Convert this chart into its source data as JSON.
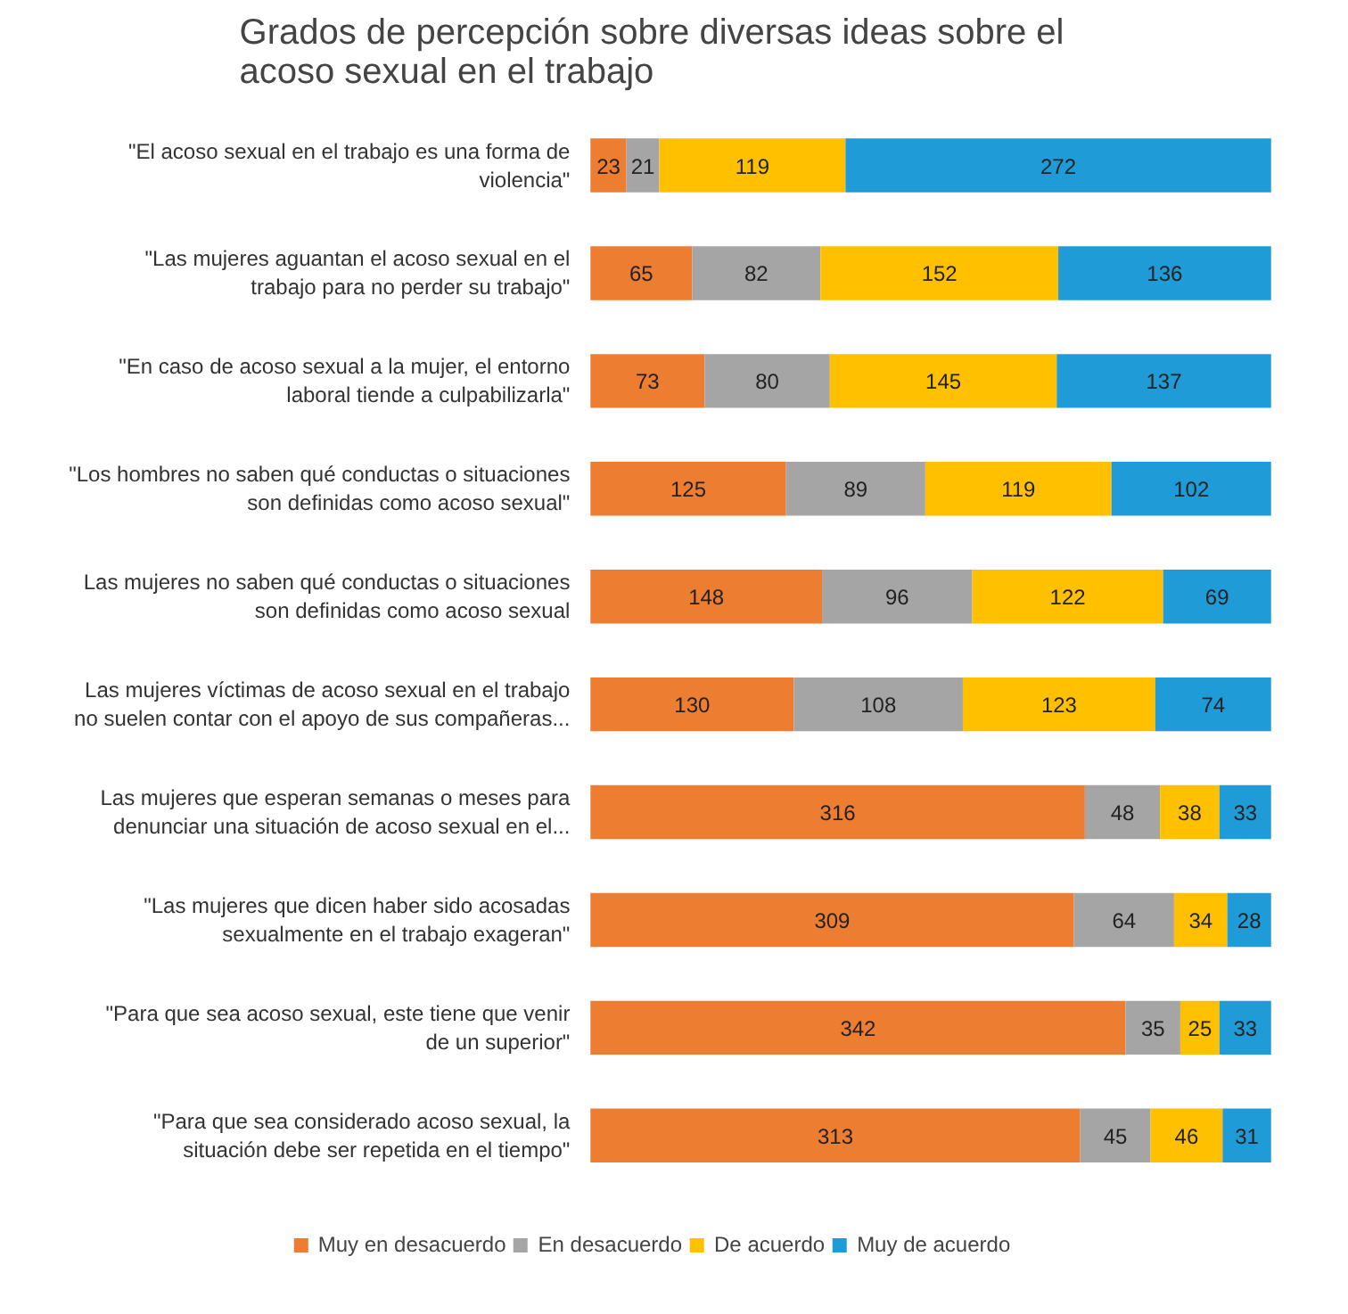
{
  "chart_data": {
    "type": "bar",
    "orientation": "horizontal",
    "stacked": true,
    "data_labels": true,
    "legend": "bottom",
    "title": "Grados de percepción sobre diversas ideas sobre el acoso sexual en el trabajo",
    "categories": [
      "\"El acoso sexual en el trabajo es una forma de violencia\"",
      "\"Las mujeres aguantan el acoso sexual en el trabajo para no perder su trabajo\"",
      "\"En caso de acoso sexual a la mujer, el entorno laboral tiende a culpabilizarla\"",
      "\"Los hombres no saben qué conductas o situaciones son definidas como acoso sexual\"",
      "Las mujeres no saben qué conductas o situaciones son definidas como acoso sexual",
      "Las mujeres víctimas de acoso sexual en el trabajo no suelen contar con el apoyo de sus compañeras...",
      "Las mujeres que esperan semanas o meses para denunciar una situación de acoso sexual en el...",
      "\"Las mujeres que dicen haber sido acosadas sexualmente en el trabajo exageran\"",
      "\"Para que sea acoso sexual, este tiene que venir de un superior\"",
      "\"Para que sea considerado acoso sexual, la situación debe ser repetida en el tiempo\""
    ],
    "series": [
      {
        "name": "Muy en desacuerdo",
        "color": "#ed7d31",
        "values": [
          23,
          65,
          73,
          125,
          148,
          130,
          316,
          309,
          342,
          313
        ]
      },
      {
        "name": "En desacuerdo",
        "color": "#a5a5a5",
        "values": [
          21,
          82,
          80,
          89,
          96,
          108,
          48,
          64,
          35,
          45
        ]
      },
      {
        "name": "De acuerdo",
        "color": "#ffc000",
        "values": [
          119,
          152,
          145,
          119,
          122,
          123,
          38,
          34,
          25,
          46
        ]
      },
      {
        "name": "Muy de acuerdo",
        "color": "#1f9bd7",
        "values": [
          272,
          136,
          137,
          102,
          69,
          74,
          33,
          28,
          33,
          31
        ]
      }
    ]
  }
}
